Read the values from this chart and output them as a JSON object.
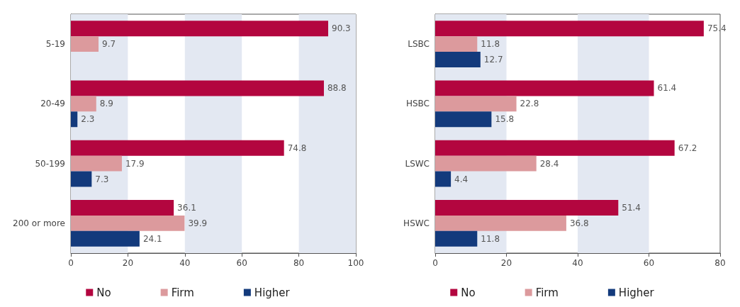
{
  "chart_data": [
    {
      "type": "bar",
      "orientation": "horizontal",
      "categories": [
        "5-19",
        "20-49",
        "50-199",
        "200 or more"
      ],
      "series": [
        {
          "name": "No",
          "color": "#b3063f",
          "values": [
            90.3,
            88.8,
            74.8,
            36.1
          ]
        },
        {
          "name": "Firm",
          "color": "#dc9a9d",
          "values": [
            9.7,
            8.9,
            17.9,
            39.9
          ]
        },
        {
          "name": "Higher",
          "color": "#133a7c",
          "values": [
            null,
            2.3,
            7.3,
            24.1
          ]
        }
      ],
      "xlim": [
        0,
        100
      ],
      "xticks": [
        0,
        20,
        40,
        60,
        80,
        100
      ],
      "bands": [
        {
          "axis": "x",
          "from": 0,
          "to": 20,
          "color": "#e3e8f2"
        },
        {
          "axis": "x",
          "from": 40,
          "to": 60,
          "color": "#e3e8f2"
        },
        {
          "axis": "x",
          "from": 80,
          "to": 100,
          "color": "#e3e8f2"
        }
      ],
      "data_labels": true,
      "legend": "bottom"
    },
    {
      "type": "bar",
      "orientation": "horizontal",
      "categories": [
        "LSBC",
        "HSBC",
        "LSWC",
        "HSWC"
      ],
      "series": [
        {
          "name": "No",
          "color": "#b3063f",
          "values": [
            75.4,
            61.4,
            67.2,
            51.4
          ]
        },
        {
          "name": "Firm",
          "color": "#dc9a9d",
          "values": [
            11.8,
            22.8,
            28.4,
            36.8
          ]
        },
        {
          "name": "Higher",
          "color": "#133a7c",
          "values": [
            12.7,
            15.8,
            4.4,
            11.8
          ]
        }
      ],
      "xlim": [
        0,
        80
      ],
      "xticks": [
        0,
        20,
        40,
        60,
        80
      ],
      "bands": [
        {
          "axis": "x",
          "from": 0,
          "to": 20,
          "color": "#e3e8f2"
        },
        {
          "axis": "x",
          "from": 40,
          "to": 60,
          "color": "#e3e8f2"
        }
      ],
      "data_labels": true,
      "legend": "bottom"
    }
  ]
}
